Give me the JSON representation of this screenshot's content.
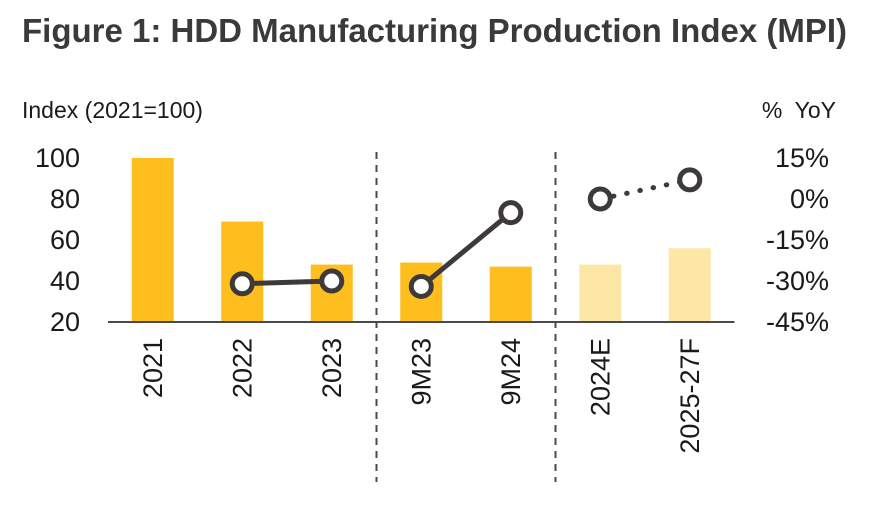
{
  "title": "Figure 1: HDD Manufacturing Production Index (MPI)",
  "chart_data": {
    "type": "bar",
    "left_axis_label": "Index (2021=100)",
    "right_axis_label": "%  YoY",
    "categories": [
      "2021",
      "2022",
      "2023",
      "9M23",
      "9M24",
      "2024E",
      "2025-27F"
    ],
    "left_ticks": [
      "100",
      "80",
      "60",
      "40",
      "20"
    ],
    "right_ticks": [
      "15%",
      "0%",
      "-15%",
      "-30%",
      "-45%"
    ],
    "ylim_left": [
      20,
      100
    ],
    "ylim_right": [
      -45,
      15
    ],
    "bars": {
      "values": [
        100,
        69,
        48,
        49,
        47,
        48,
        56
      ],
      "forecast": [
        false,
        false,
        false,
        false,
        false,
        true,
        true
      ],
      "colors": {
        "actual": "#FDBE1E",
        "forecast": "#FDE7A7"
      }
    },
    "yoy": {
      "values": [
        null,
        -31,
        -30,
        -32,
        -5,
        0,
        7
      ],
      "segments": [
        {
          "style": "solid",
          "points": [
            1,
            2
          ]
        },
        {
          "style": "solid",
          "points": [
            3,
            4
          ]
        },
        {
          "style": "dotted",
          "points": [
            5,
            6
          ]
        }
      ],
      "line_color": "#3f3a3a"
    },
    "dividers_after": [
      2,
      4
    ],
    "grid": false
  }
}
